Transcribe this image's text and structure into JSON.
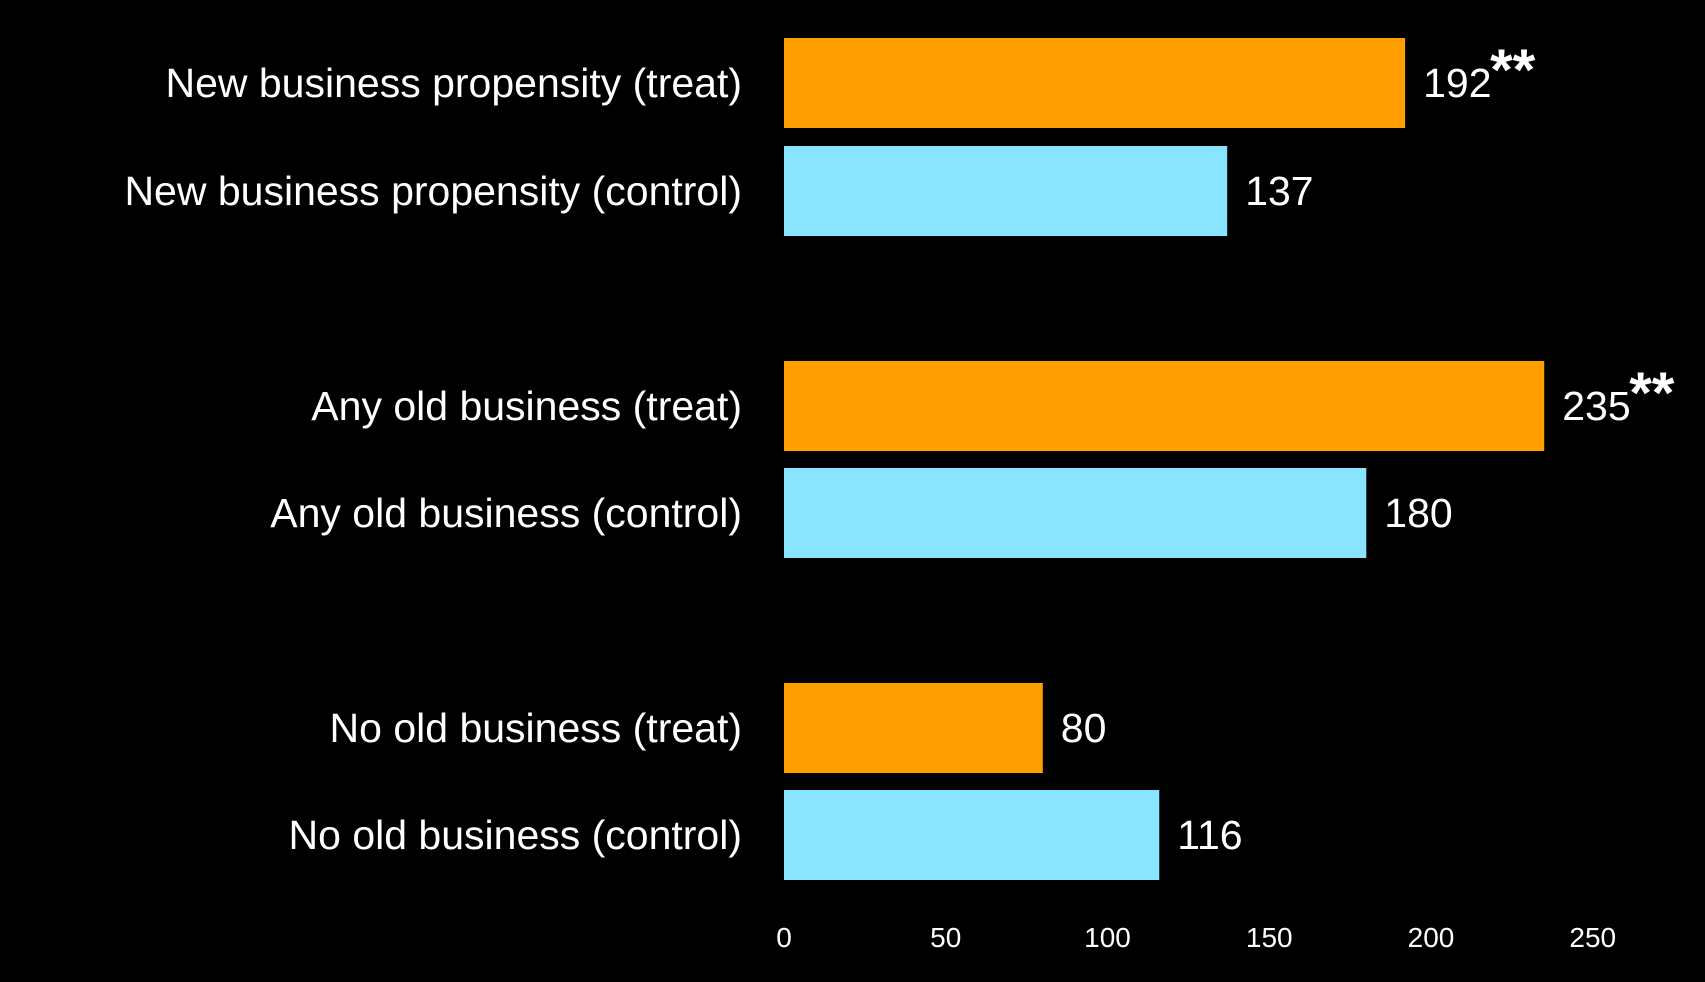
{
  "chart_data": {
    "type": "bar",
    "orientation": "horizontal",
    "categories": [
      "New business propensity (treat)",
      "New business propensity (control)",
      "Any old business (treat)",
      "Any old business (control)",
      "No old business (treat)",
      "No old business (control)"
    ],
    "values": [
      192,
      137,
      235,
      180,
      80,
      116
    ],
    "value_labels": [
      "192",
      "137",
      "235",
      "180",
      "80",
      "116"
    ],
    "significance": [
      "**",
      "",
      "**",
      "",
      "",
      ""
    ],
    "bar_colors": [
      "#ffa000",
      "#88e4ff",
      "#ffa000",
      "#88e4ff",
      "#ffa000",
      "#88e4ff"
    ],
    "groups": [
      [
        0,
        1
      ],
      [
        2,
        3
      ],
      [
        4,
        5
      ]
    ],
    "xlim": [
      0,
      250
    ],
    "x_ticks": [
      0,
      50,
      100,
      150,
      200,
      250
    ],
    "title": "",
    "xlabel": "",
    "ylabel": "",
    "grid": false,
    "legend": "none"
  },
  "colors": {
    "background": "#000000",
    "text": "#ffffff",
    "treat": "#ffa000",
    "control": "#88e4ff"
  }
}
